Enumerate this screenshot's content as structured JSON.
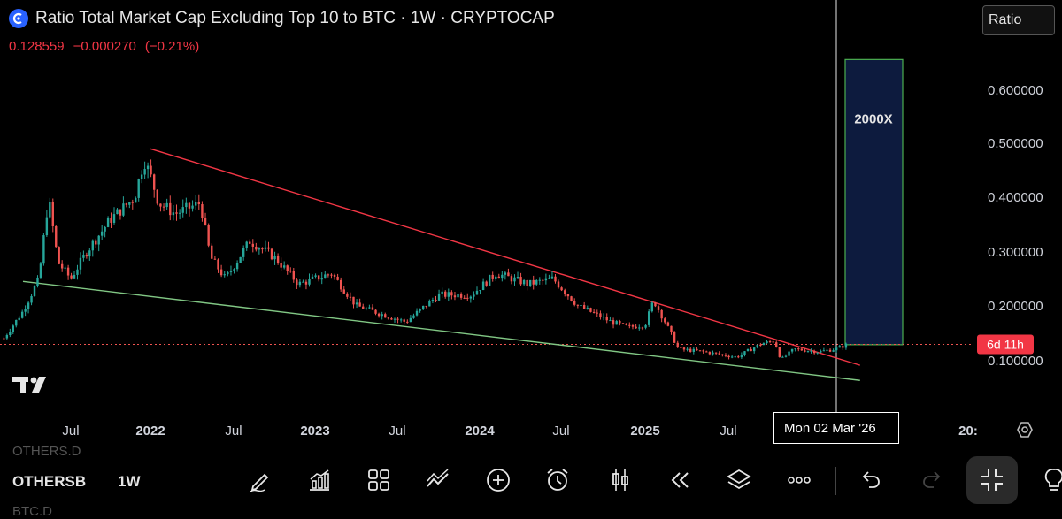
{
  "header": {
    "title": "Ratio Total Market Cap Excluding Top 10 to BTC · 1W · CRYPTOCAP",
    "price": "0.128559",
    "change": "−0.000270",
    "change_pct": "(−0.21%)"
  },
  "scale_selector": {
    "label": "Ratio"
  },
  "price_axis": {
    "labels": [
      "0.600000",
      "0.500000",
      "0.400000",
      "0.300000",
      "0.200000",
      "0.100000"
    ],
    "countdown_label": "6d 11h"
  },
  "time_axis": {
    "labels": [
      "Jul",
      "2022",
      "Jul",
      "2023",
      "Jul",
      "2024",
      "Jul",
      "2025",
      "Jul",
      "20:"
    ],
    "cursor_label": "Mon 02 Mar '26"
  },
  "chart_data": {
    "type": "candlestick",
    "title": "Ratio Total Market Cap Excluding Top 10 to BTC · 1W · CRYPTOCAP",
    "ylim": [
      0.05,
      0.68
    ],
    "x_range": [
      2021.08,
      2026.6
    ],
    "current_price": 0.128559,
    "key_points": [
      {
        "x": 2021.08,
        "y": 0.14
      },
      {
        "x": 2021.2,
        "y": 0.19
      },
      {
        "x": 2021.3,
        "y": 0.25
      },
      {
        "x": 2021.36,
        "y": 0.4
      },
      {
        "x": 2021.42,
        "y": 0.28
      },
      {
        "x": 2021.5,
        "y": 0.25
      },
      {
        "x": 2021.6,
        "y": 0.3
      },
      {
        "x": 2021.75,
        "y": 0.36
      },
      {
        "x": 2021.9,
        "y": 0.4
      },
      {
        "x": 2021.96,
        "y": 0.47
      },
      {
        "x": 2022.0,
        "y": 0.44
      },
      {
        "x": 2022.05,
        "y": 0.39
      },
      {
        "x": 2022.15,
        "y": 0.37
      },
      {
        "x": 2022.3,
        "y": 0.39
      },
      {
        "x": 2022.36,
        "y": 0.29
      },
      {
        "x": 2022.45,
        "y": 0.25
      },
      {
        "x": 2022.6,
        "y": 0.32
      },
      {
        "x": 2022.75,
        "y": 0.29
      },
      {
        "x": 2022.9,
        "y": 0.24
      },
      {
        "x": 2023.1,
        "y": 0.26
      },
      {
        "x": 2023.25,
        "y": 0.2
      },
      {
        "x": 2023.45,
        "y": 0.18
      },
      {
        "x": 2023.55,
        "y": 0.17
      },
      {
        "x": 2023.75,
        "y": 0.22
      },
      {
        "x": 2023.95,
        "y": 0.22
      },
      {
        "x": 2024.1,
        "y": 0.26
      },
      {
        "x": 2024.3,
        "y": 0.24
      },
      {
        "x": 2024.45,
        "y": 0.25
      },
      {
        "x": 2024.6,
        "y": 0.2
      },
      {
        "x": 2024.8,
        "y": 0.17
      },
      {
        "x": 2024.9,
        "y": 0.16
      },
      {
        "x": 2025.0,
        "y": 0.165
      },
      {
        "x": 2025.05,
        "y": 0.21
      },
      {
        "x": 2025.12,
        "y": 0.17
      },
      {
        "x": 2025.2,
        "y": 0.12
      },
      {
        "x": 2025.35,
        "y": 0.115
      },
      {
        "x": 2025.45,
        "y": 0.11
      },
      {
        "x": 2025.55,
        "y": 0.105
      },
      {
        "x": 2025.7,
        "y": 0.13
      },
      {
        "x": 2025.78,
        "y": 0.135
      },
      {
        "x": 2025.82,
        "y": 0.1
      },
      {
        "x": 2025.9,
        "y": 0.12
      },
      {
        "x": 2026.05,
        "y": 0.115
      },
      {
        "x": 2026.15,
        "y": 0.12
      },
      {
        "x": 2026.22,
        "y": 0.128
      }
    ],
    "trendlines": [
      {
        "color": "#f23645",
        "from": {
          "x": 2022.0,
          "y": 0.49
        },
        "to": {
          "x": 2026.3,
          "y": 0.09
        }
      },
      {
        "color": "#81c784",
        "from": {
          "x": 2021.2,
          "y": 0.245
        },
        "to": {
          "x": 2026.3,
          "y": 0.062
        }
      }
    ],
    "annotation_box": {
      "label": "2000X",
      "y_range": [
        0.128,
        0.655
      ]
    },
    "colors": {
      "up": "#26a69a",
      "down": "#ef5350",
      "box_fill": "#0d1b3e",
      "box_border": "#4caf50"
    }
  },
  "toolbar": {
    "symbol": "OTHERSB",
    "timeframe": "1W",
    "ghost_above": "OTHERS.D",
    "ghost_below": "BTC.D"
  }
}
